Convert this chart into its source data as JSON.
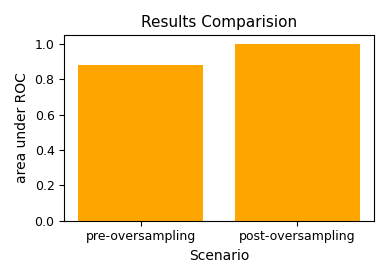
{
  "categories": [
    "pre-oversampling",
    "post-oversampling"
  ],
  "values": [
    0.88,
    1.0
  ],
  "bar_color": "#FFA500",
  "bar_width": 0.8,
  "title": "Results Comparision",
  "xlabel": "Scenario",
  "ylabel": "area under ROC",
  "ylim": [
    0.0,
    1.05
  ],
  "yticks": [
    0.0,
    0.2,
    0.4,
    0.6,
    0.8,
    1.0
  ],
  "title_fontsize": 11,
  "label_fontsize": 10,
  "tick_fontsize": 9
}
